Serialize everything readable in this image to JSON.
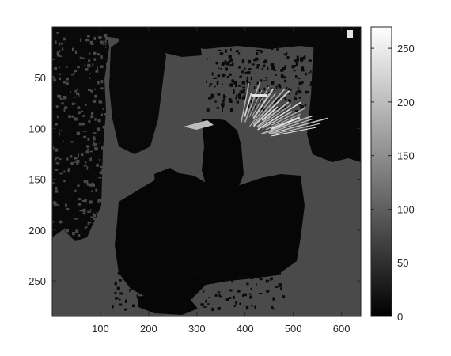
{
  "chart_data": {
    "type": "heatmap",
    "title": "",
    "xlabel": "",
    "ylabel": "",
    "xlim": [
      0,
      640
    ],
    "ylim_reversed": [
      0,
      285
    ],
    "x_ticks": [
      "100",
      "200",
      "300",
      "400",
      "500",
      "600"
    ],
    "x_tick_values": [
      100,
      200,
      300,
      400,
      500,
      600
    ],
    "y_ticks": [
      "50",
      "100",
      "150",
      "200",
      "250"
    ],
    "y_tick_values": [
      50,
      100,
      150,
      200,
      250
    ],
    "colorbar": {
      "colormap": "gray",
      "range": [
        0,
        270
      ],
      "ticks": [
        "0",
        "50",
        "100",
        "150",
        "200",
        "250"
      ],
      "tick_values": [
        0,
        50,
        100,
        150,
        200,
        250
      ]
    },
    "background_value": 78,
    "regions": [
      {
        "name": "top-dark-band",
        "value": 8
      },
      {
        "name": "left-tree-dark",
        "value": 10
      },
      {
        "name": "center-left-dark-shape",
        "value": 10
      },
      {
        "name": "right-dark-shape",
        "value": 8
      },
      {
        "name": "toy-truck-dark",
        "value": 6
      },
      {
        "name": "bottle-dark",
        "value": 6
      },
      {
        "name": "bright-streaks",
        "value": 240
      }
    ]
  }
}
